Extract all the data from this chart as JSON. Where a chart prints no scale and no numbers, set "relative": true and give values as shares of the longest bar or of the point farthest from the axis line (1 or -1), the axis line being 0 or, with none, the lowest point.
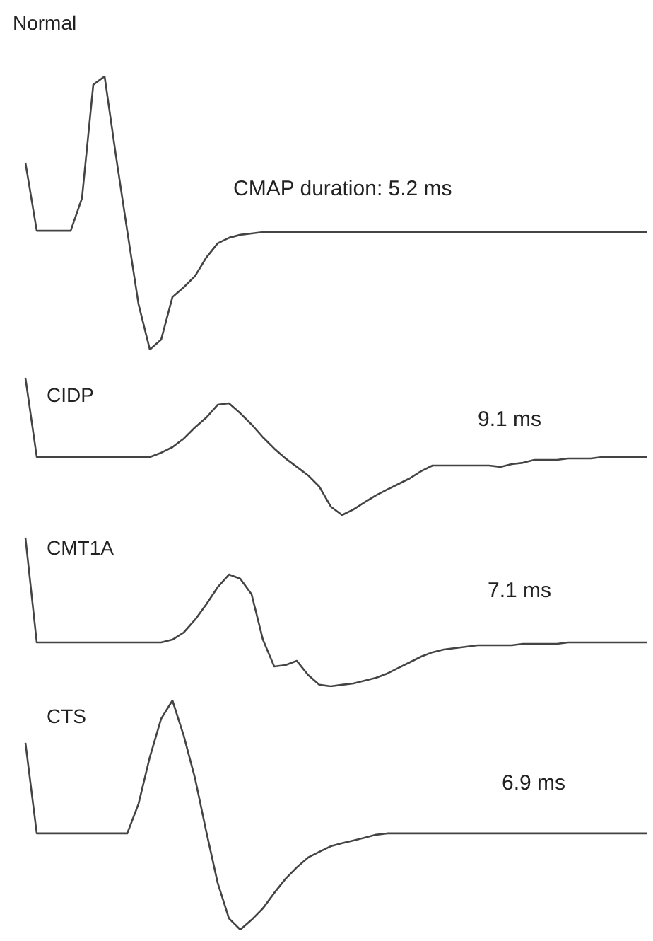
{
  "chart_data": [
    {
      "type": "line",
      "title": "Normal",
      "relative": true,
      "marker": "none",
      "annotations": [
        "CMAP duration: 5.2 ms"
      ],
      "categories": [
        null,
        null,
        null,
        null,
        null,
        null,
        null,
        null,
        null,
        null,
        null,
        null,
        null,
        null,
        null,
        null,
        null,
        null,
        null,
        null,
        null,
        null,
        null,
        null,
        null,
        null,
        null,
        null,
        null,
        null,
        null,
        null,
        null,
        null,
        null,
        null,
        null,
        null,
        null,
        null,
        null,
        null,
        null,
        null,
        null,
        null,
        null,
        null,
        null,
        null,
        null,
        null,
        null,
        null,
        null,
        null
      ],
      "series": [
        {
          "color": "#444444",
          "values": [
            0.684,
            0.435,
            0.435,
            0.435,
            0.435,
            0.554,
            0.97,
            1,
            0.71,
            0.435,
            0.166,
            0,
            0.036,
            0.192,
            0.228,
            0.269,
            0.337,
            0.389,
            0.409,
            0.42,
            0.425,
            0.43,
            0.43,
            0.43,
            0.43,
            0.43,
            0.43,
            0.43,
            0.43,
            0.43,
            0.43,
            0.43,
            0.43,
            0.43,
            0.43,
            0.43,
            0.43,
            0.43,
            0.43,
            0.43,
            0.43,
            0.43,
            0.43,
            0.43,
            0.43,
            0.43,
            0.43,
            0.43,
            0.43,
            0.43,
            0.43,
            0.43,
            0.43,
            0.43,
            0.43,
            0.43
          ]
        }
      ]
    },
    {
      "type": "line",
      "title": "CIDP",
      "relative": true,
      "marker": "none",
      "annotations": [
        "9.1 ms"
      ],
      "categories": [
        null,
        null,
        null,
        null,
        null,
        null,
        null,
        null,
        null,
        null,
        null,
        null,
        null,
        null,
        null,
        null,
        null,
        null,
        null,
        null,
        null,
        null,
        null,
        null,
        null,
        null,
        null,
        null,
        null,
        null,
        null,
        null,
        null,
        null,
        null,
        null,
        null,
        null,
        null,
        null,
        null,
        null,
        null,
        null,
        null,
        null,
        null,
        null,
        null,
        null,
        null,
        null,
        null,
        null,
        null,
        null
      ],
      "series": [
        {
          "color": "#444444",
          "values": [
            1,
            0.423,
            0.423,
            0.423,
            0.423,
            0.423,
            0.423,
            0.423,
            0.423,
            0.423,
            0.423,
            0.423,
            0.454,
            0.495,
            0.557,
            0.639,
            0.711,
            0.804,
            0.814,
            0.742,
            0.66,
            0.567,
            0.485,
            0.412,
            0.351,
            0.289,
            0.206,
            0.062,
            0,
            0.041,
            0.093,
            0.144,
            0.186,
            0.227,
            0.268,
            0.32,
            0.361,
            0.361,
            0.361,
            0.361,
            0.361,
            0.361,
            0.351,
            0.371,
            0.381,
            0.402,
            0.402,
            0.402,
            0.412,
            0.412,
            0.412,
            0.423,
            0.423,
            0.423,
            0.423,
            0.423
          ]
        }
      ]
    },
    {
      "type": "line",
      "title": "CMT1A",
      "relative": true,
      "marker": "none",
      "annotations": [
        "7.1 ms"
      ],
      "categories": [
        null,
        null,
        null,
        null,
        null,
        null,
        null,
        null,
        null,
        null,
        null,
        null,
        null,
        null,
        null,
        null,
        null,
        null,
        null,
        null,
        null,
        null,
        null,
        null,
        null,
        null,
        null,
        null,
        null,
        null,
        null,
        null,
        null,
        null,
        null,
        null,
        null,
        null,
        null,
        null,
        null,
        null,
        null,
        null,
        null,
        null,
        null,
        null,
        null,
        null,
        null,
        null,
        null,
        null,
        null,
        null
      ],
      "series": [
        {
          "color": "#444444",
          "values": [
            1,
            0.295,
            0.295,
            0.295,
            0.295,
            0.295,
            0.295,
            0.295,
            0.295,
            0.295,
            0.295,
            0.295,
            0.295,
            0.314,
            0.362,
            0.448,
            0.552,
            0.667,
            0.752,
            0.724,
            0.619,
            0.314,
            0.133,
            0.143,
            0.171,
            0.076,
            0.01,
            0,
            0.01,
            0.019,
            0.038,
            0.057,
            0.086,
            0.124,
            0.162,
            0.2,
            0.229,
            0.248,
            0.257,
            0.267,
            0.276,
            0.276,
            0.276,
            0.276,
            0.286,
            0.286,
            0.286,
            0.286,
            0.295,
            0.295,
            0.295,
            0.295,
            0.295,
            0.295,
            0.295,
            0.295
          ]
        }
      ]
    },
    {
      "type": "line",
      "title": "CTS",
      "relative": true,
      "marker": "none",
      "annotations": [
        "6.9 ms"
      ],
      "categories": [
        null,
        null,
        null,
        null,
        null,
        null,
        null,
        null,
        null,
        null,
        null,
        null,
        null,
        null,
        null,
        null,
        null,
        null,
        null,
        null,
        null,
        null,
        null,
        null,
        null,
        null,
        null,
        null,
        null,
        null,
        null,
        null,
        null,
        null,
        null,
        null,
        null,
        null,
        null,
        null,
        null,
        null,
        null,
        null,
        null,
        null,
        null,
        null,
        null,
        null,
        null,
        null,
        null,
        null,
        null,
        null
      ],
      "series": [
        {
          "color": "#444444",
          "values": [
            0.815,
            0.42,
            0.42,
            0.42,
            0.42,
            0.42,
            0.42,
            0.42,
            0.42,
            0.42,
            0.549,
            0.753,
            0.92,
            1,
            0.846,
            0.66,
            0.426,
            0.204,
            0.049,
            0,
            0.043,
            0.093,
            0.16,
            0.222,
            0.272,
            0.315,
            0.34,
            0.364,
            0.377,
            0.389,
            0.401,
            0.414,
            0.42,
            0.42,
            0.42,
            0.42,
            0.42,
            0.42,
            0.42,
            0.42,
            0.42,
            0.42,
            0.42,
            0.42,
            0.42,
            0.42,
            0.42,
            0.42,
            0.42,
            0.42,
            0.42,
            0.42,
            0.42,
            0.42,
            0.42,
            0.42
          ]
        }
      ]
    }
  ]
}
